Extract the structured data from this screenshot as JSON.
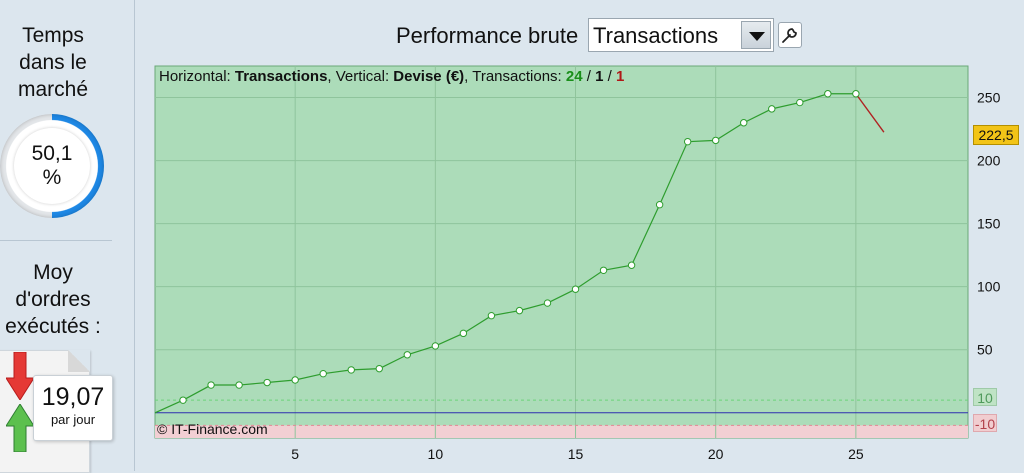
{
  "sidebar": {
    "time_title": "Temps dans le marché",
    "time_value": "50,1",
    "time_unit": "%",
    "time_fraction": 0.501,
    "orders_title": "Moy d'ordres exécutés :",
    "orders_value": "19,07",
    "orders_unit": "par jour"
  },
  "header": {
    "title": "Performance brute",
    "select_value": "Transactions"
  },
  "info": {
    "h_label": "Horizontal: ",
    "h_value": "Transactions",
    "v_label": ", Vertical: ",
    "v_value": "Devise (€)",
    "t_label": ", Transactions: ",
    "t_win": "24",
    "sep1": " / ",
    "t_mid": "1",
    "sep2": " / ",
    "t_loss": "1"
  },
  "copyright": "© IT-Finance.com",
  "badges": {
    "last": "222,5",
    "up": "10",
    "down": "-10"
  },
  "colors": {
    "plot_bg": "#acdcb9",
    "loss_band": "#f2cfd3",
    "line_up": "#2e9d2e",
    "line_down": "#b02222",
    "zero_line": "#2f2fb0",
    "grid": "#8fc49c"
  },
  "chart_data": {
    "type": "line",
    "xlim": [
      0,
      29
    ],
    "ylim": [
      -20,
      275
    ],
    "x_ticks": [
      "5",
      "10",
      "15",
      "20",
      "25"
    ],
    "y_ticks": [
      "50",
      "100",
      "150",
      "200",
      "250"
    ],
    "thresholds": [
      10,
      -10
    ],
    "x": [
      0,
      1,
      2,
      3,
      4,
      5,
      6,
      7,
      8,
      9,
      10,
      11,
      12,
      13,
      14,
      15,
      16,
      17,
      18,
      19,
      20,
      21,
      22,
      23,
      24,
      25,
      26
    ],
    "y": [
      0,
      10,
      22,
      22,
      24,
      26,
      31,
      34,
      35,
      46,
      53,
      63,
      77,
      81,
      87,
      98,
      113,
      117,
      165,
      215,
      216,
      230,
      241,
      246,
      253,
      253,
      222.5
    ],
    "last_value": 222.5
  }
}
